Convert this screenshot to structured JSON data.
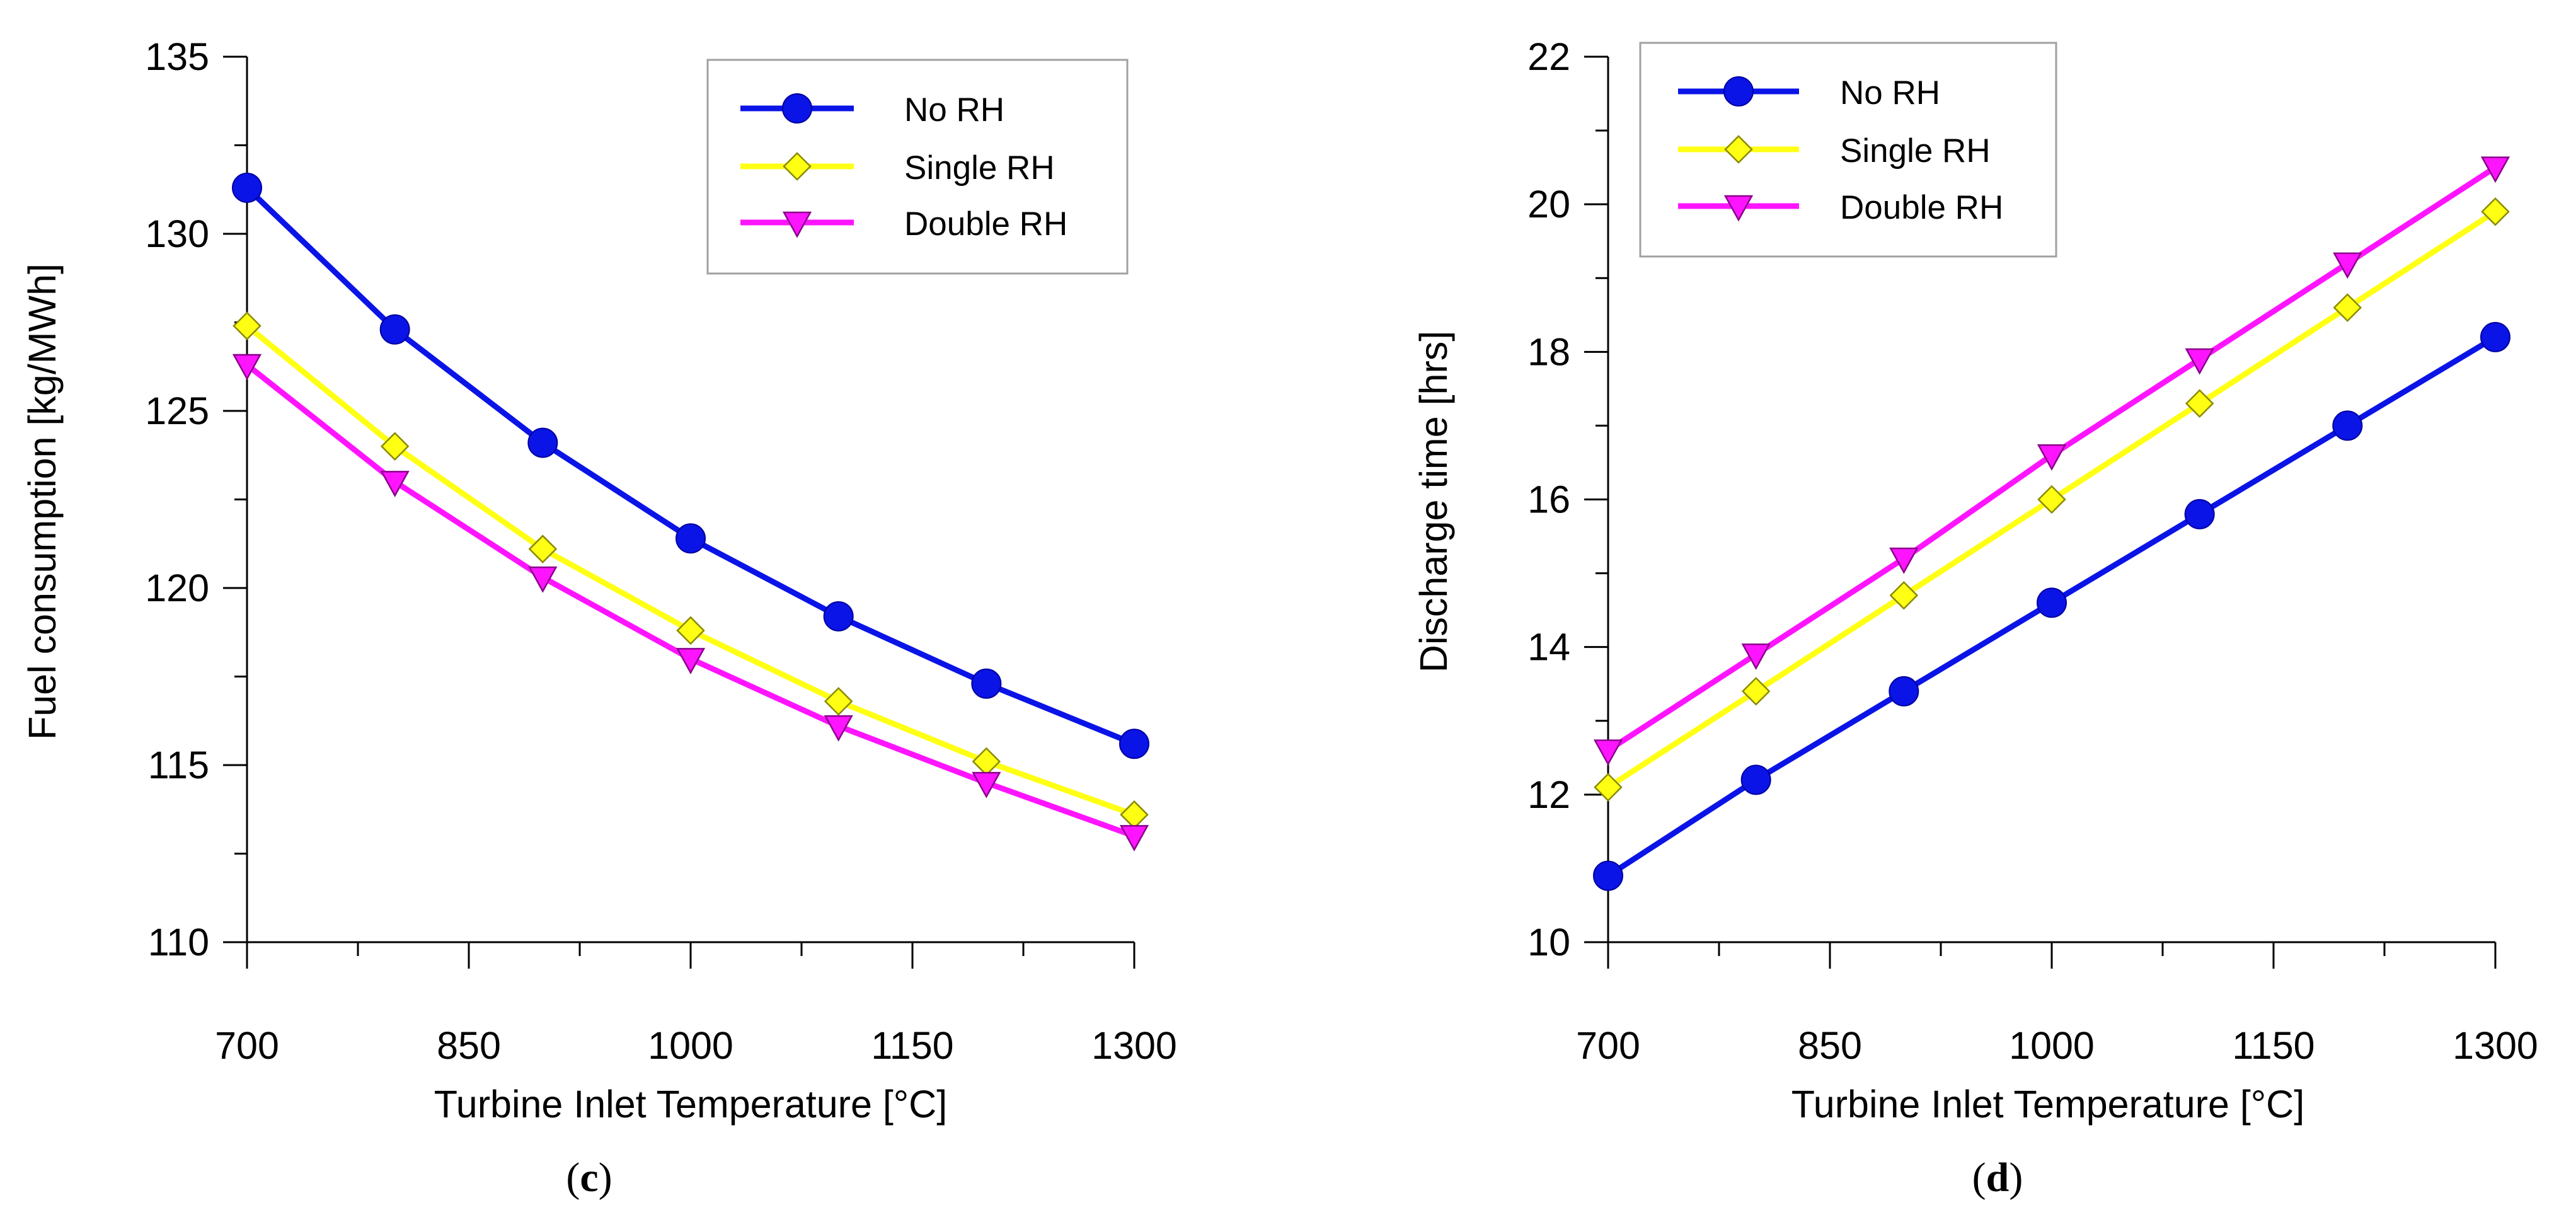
{
  "chart_data": [
    {
      "id": "c",
      "type": "line",
      "caption": {
        "open": "(",
        "letter": "c",
        "close": ")"
      },
      "xlabel": "Turbine Inlet Temperature [°C]",
      "ylabel": "Fuel consumption [kg/MWh]",
      "x": [
        700,
        800,
        900,
        1000,
        1100,
        1200,
        1300
      ],
      "xlim": [
        700,
        1300
      ],
      "ylim": [
        110,
        135
      ],
      "xticks": [
        700,
        850,
        1000,
        1150,
        1300
      ],
      "yticks": [
        110,
        115,
        120,
        125,
        130,
        135
      ],
      "legend_position": "top-right",
      "series": [
        {
          "name": "No RH",
          "color": "#0a14e6",
          "marker": "circle",
          "values": [
            131.3,
            127.3,
            124.1,
            121.4,
            119.2,
            117.3,
            115.6
          ]
        },
        {
          "name": "Single RH",
          "color": "#ffff14",
          "marker": "diamond",
          "values": [
            127.4,
            124.0,
            121.1,
            118.8,
            116.8,
            115.1,
            113.6
          ]
        },
        {
          "name": "Double RH",
          "color": "#ff14ff",
          "marker": "triangle-down",
          "values": [
            126.3,
            123.0,
            120.3,
            118.0,
            116.1,
            114.5,
            113.0
          ]
        }
      ]
    },
    {
      "id": "d",
      "type": "line",
      "caption": {
        "open": "(",
        "letter": "d",
        "close": ")"
      },
      "xlabel": "Turbine Inlet Temperature [°C]",
      "ylabel": "Discharge time [hrs]",
      "x": [
        700,
        800,
        900,
        1000,
        1100,
        1200,
        1300
      ],
      "xlim": [
        700,
        1300
      ],
      "ylim": [
        10,
        22
      ],
      "xticks": [
        700,
        850,
        1000,
        1150,
        1300
      ],
      "yticks": [
        10,
        12,
        14,
        16,
        18,
        20,
        22
      ],
      "legend_position": "top-left",
      "series": [
        {
          "name": "No RH",
          "color": "#0a14e6",
          "marker": "circle",
          "values": [
            10.9,
            12.2,
            13.4,
            14.6,
            15.8,
            17.0,
            18.2
          ]
        },
        {
          "name": "Single RH",
          "color": "#ffff14",
          "marker": "diamond",
          "values": [
            12.1,
            13.4,
            14.7,
            16.0,
            17.3,
            18.6,
            19.9
          ]
        },
        {
          "name": "Double RH",
          "color": "#ff14ff",
          "marker": "triangle-down",
          "values": [
            12.6,
            13.9,
            15.2,
            16.6,
            17.9,
            19.2,
            20.5
          ]
        }
      ]
    }
  ]
}
